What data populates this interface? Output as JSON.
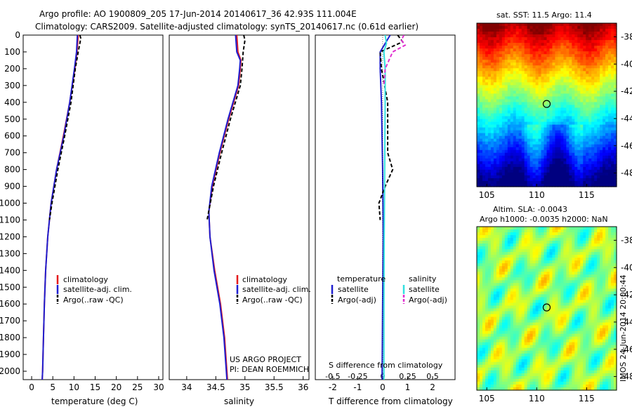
{
  "title_line1": "Argo profile: AO 1900809_205 17-Jun-2014 20140617_36 42.93S 111.004E",
  "title_line2": "Climatology: CARS2009. Satellite-adjusted climatology: synTS_20140617.nc (0.61d earlier)",
  "project_label": "US ARGO PROJECT",
  "pi_label": "PI: DEAN ROEMMICH",
  "side_stamp": "IMOS 24-Jun-2014 20:00:44",
  "colors": {
    "climatology": "#e41a1c",
    "satellite": "#1f1fd0",
    "argo": "#000000",
    "salinity_satellite": "#33e0e0",
    "salinity_argo": "#e030d0"
  },
  "chart_data": [
    {
      "type": "line",
      "xlabel": "temperature (deg C)",
      "ylabel": "",
      "xlim": [
        -2,
        31
      ],
      "ylim": [
        2050,
        0
      ],
      "xticks": [
        0,
        5,
        10,
        15,
        20,
        25,
        30
      ],
      "yticks": [
        0,
        100,
        200,
        300,
        400,
        500,
        600,
        700,
        800,
        900,
        1000,
        1100,
        1200,
        1300,
        1400,
        1500,
        1600,
        1700,
        1800,
        1900,
        2000
      ],
      "legend": [
        "climatology",
        "satellite-adj. clim.",
        "Argo(..raw -QC)"
      ],
      "series": [
        {
          "name": "climatology",
          "depth": [
            0,
            100,
            200,
            400,
            600,
            800,
            1000,
            1200,
            1400,
            1600,
            1800,
            2000,
            2050
          ],
          "values": [
            11.0,
            10.7,
            10.2,
            9.0,
            7.5,
            5.9,
            4.6,
            3.8,
            3.3,
            3.0,
            2.8,
            2.6,
            2.5
          ]
        },
        {
          "name": "satellite-adj. clim.",
          "depth": [
            0,
            100,
            200,
            400,
            600,
            800,
            1000,
            1200,
            1400,
            1600,
            1800,
            2000,
            2050
          ],
          "values": [
            10.8,
            10.6,
            10.1,
            9.0,
            7.6,
            5.9,
            4.6,
            3.8,
            3.3,
            3.0,
            2.8,
            2.6,
            2.5
          ]
        },
        {
          "name": "Argo(..raw -QC)",
          "depth": [
            0,
            20,
            100,
            200,
            400,
            600,
            800,
            1000,
            1100
          ],
          "values": [
            11.4,
            11.6,
            11.0,
            10.3,
            9.3,
            7.8,
            6.2,
            4.8,
            4.2
          ]
        }
      ]
    },
    {
      "type": "line",
      "xlabel": "salinity",
      "ylabel": "",
      "xlim": [
        33.7,
        36.1
      ],
      "ylim": [
        2050,
        0
      ],
      "xticks": [
        34,
        34.5,
        35,
        35.5,
        36
      ],
      "legend": [
        "climatology",
        "satellite-adj. clim.",
        "Argo(..raw -QC)"
      ],
      "series": [
        {
          "name": "climatology",
          "depth": [
            0,
            100,
            150,
            200,
            300,
            500,
            700,
            900,
            1050,
            1200,
            1400,
            1600,
            1800,
            2000,
            2050
          ],
          "values": [
            34.86,
            34.88,
            34.93,
            34.92,
            34.89,
            34.72,
            34.57,
            34.44,
            34.38,
            34.4,
            34.48,
            34.58,
            34.65,
            34.69,
            34.7
          ]
        },
        {
          "name": "satellite-adj. clim.",
          "depth": [
            0,
            100,
            150,
            200,
            300,
            500,
            700,
            900,
            1050,
            1200,
            1400,
            1600,
            1800,
            2000,
            2050
          ],
          "values": [
            34.84,
            34.86,
            34.92,
            34.91,
            34.88,
            34.71,
            34.56,
            34.43,
            34.38,
            34.4,
            34.47,
            34.57,
            34.64,
            34.68,
            34.69
          ]
        },
        {
          "name": "Argo(..raw -QC)",
          "depth": [
            0,
            30,
            100,
            200,
            300,
            500,
            700,
            900,
            1100
          ],
          "values": [
            34.98,
            35.0,
            34.97,
            34.95,
            34.92,
            34.75,
            34.6,
            34.46,
            34.35
          ]
        }
      ]
    },
    {
      "type": "line",
      "xlabel": "T difference from climatology",
      "xlabel_top": "S difference from climatology",
      "xlim": [
        -2.7,
        2.9
      ],
      "ylim": [
        2050,
        0
      ],
      "xticks": [
        -2,
        -1,
        0,
        1,
        2
      ],
      "xticks_top": [
        "-0.5",
        "-0.25",
        "0",
        "0.25",
        "0.5"
      ],
      "legend_temperature_title": "temperature",
      "legend_salinity_title": "salinity",
      "legend": [
        "satellite",
        "Argo(-adj)",
        "satellite",
        "Argo(-adj)"
      ],
      "series": [
        {
          "name": "satellite",
          "depth": [
            0,
            50,
            100,
            200,
            400,
            800,
            1200,
            1600,
            2000,
            2050
          ],
          "values": [
            0.3,
            0.1,
            -0.1,
            -0.1,
            -0.05,
            0,
            0.02,
            0,
            -0.02,
            -0.02
          ]
        },
        {
          "name": "Argo(-adj)",
          "depth": [
            0,
            40,
            100,
            200,
            400,
            700,
            800,
            900,
            1000,
            1100
          ],
          "values": [
            0.6,
            0.8,
            -0.1,
            -0.05,
            0.2,
            0.2,
            0.4,
            0.1,
            -0.15,
            -0.1
          ]
        },
        {
          "name": "satellite",
          "depth": [
            0,
            50,
            100,
            200,
            400,
            800,
            1200,
            1600,
            2000,
            2050
          ],
          "values": [
            0.1,
            0.15,
            0.05,
            0.1,
            0.1,
            0.08,
            0.06,
            0.05,
            0.05,
            0.05
          ]
        },
        {
          "name": "Argo(-adj)",
          "depth": [
            0,
            30,
            60,
            100,
            200,
            300
          ],
          "values": [
            0.85,
            0.75,
            0.9,
            0.4,
            0.1,
            0.05
          ]
        }
      ]
    },
    {
      "type": "heatmap",
      "title": "sat. SST: 11.5 Argo: 11.4",
      "xlim": [
        104,
        118
      ],
      "ylim": [
        -49,
        -37
      ],
      "xticks": [
        105,
        110,
        115
      ],
      "yticks": [
        -38,
        -40,
        -42,
        -44,
        -46,
        -48
      ],
      "marker": [
        111.0,
        -42.93
      ]
    },
    {
      "type": "heatmap",
      "title_line1": "Altim. SLA: -0.0043",
      "title_line2": "Argo h1000: -0.0035 h2000: NaN",
      "xlim": [
        104,
        118
      ],
      "ylim": [
        -49,
        -37
      ],
      "xticks": [
        105,
        110,
        115
      ],
      "yticks": [
        -38,
        -40,
        -42,
        -44,
        -46,
        -48
      ],
      "marker": [
        111.0,
        -42.93
      ]
    }
  ]
}
